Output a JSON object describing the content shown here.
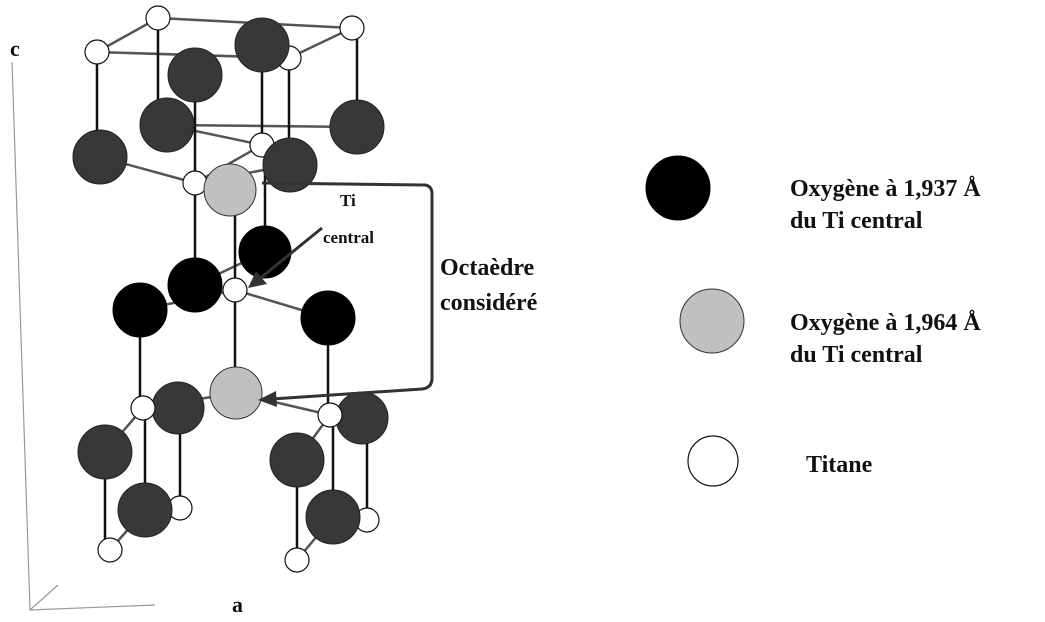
{
  "axes": {
    "c": "c",
    "a": "a"
  },
  "annotations": {
    "ti_central": [
      "Ti",
      "central"
    ],
    "octahedron": [
      "Octaèdre",
      "considéré"
    ]
  },
  "legend": [
    {
      "lines": [
        "Oxygène à 1,937 Å",
        "du Ti central"
      ]
    },
    {
      "lines": [
        "Oxygène à 1,964 Å",
        "du Ti central"
      ]
    },
    {
      "lines": [
        "Titane"
      ]
    }
  ]
}
